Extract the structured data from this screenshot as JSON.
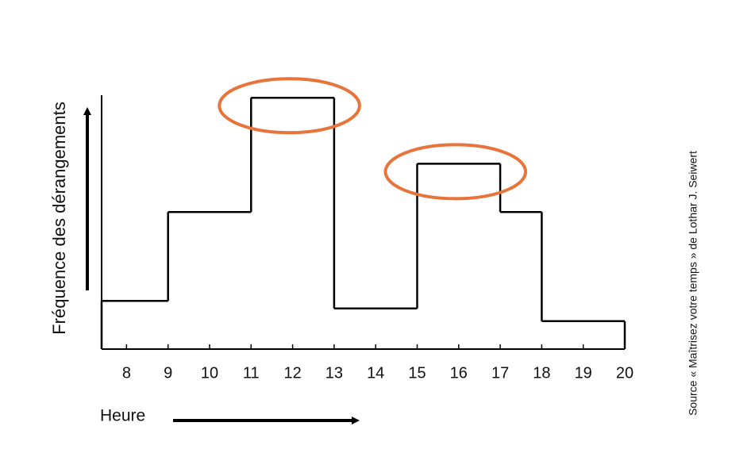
{
  "chart_data": {
    "type": "histogram",
    "y_label": "Fréquence des dérangements",
    "x_label": "Heure",
    "source": "Source « Maîtrisez votre temps » de Lothar J. Seiwert",
    "bins": [
      7.4,
      9,
      11,
      13,
      15,
      17,
      18,
      20
    ],
    "values": [
      1.9,
      5.4,
      9.9,
      1.6,
      7.3,
      5.4,
      1.1
    ],
    "color": "#000000",
    "highlight_color": "#e8743b",
    "highlight_bins": [
      2,
      4
    ],
    "xlim": [
      7.4,
      20
    ],
    "ylim": [
      0,
      10
    ],
    "xticks": [
      8,
      9,
      10,
      11,
      12,
      13,
      14,
      15,
      16,
      17,
      18,
      19,
      20
    ]
  }
}
